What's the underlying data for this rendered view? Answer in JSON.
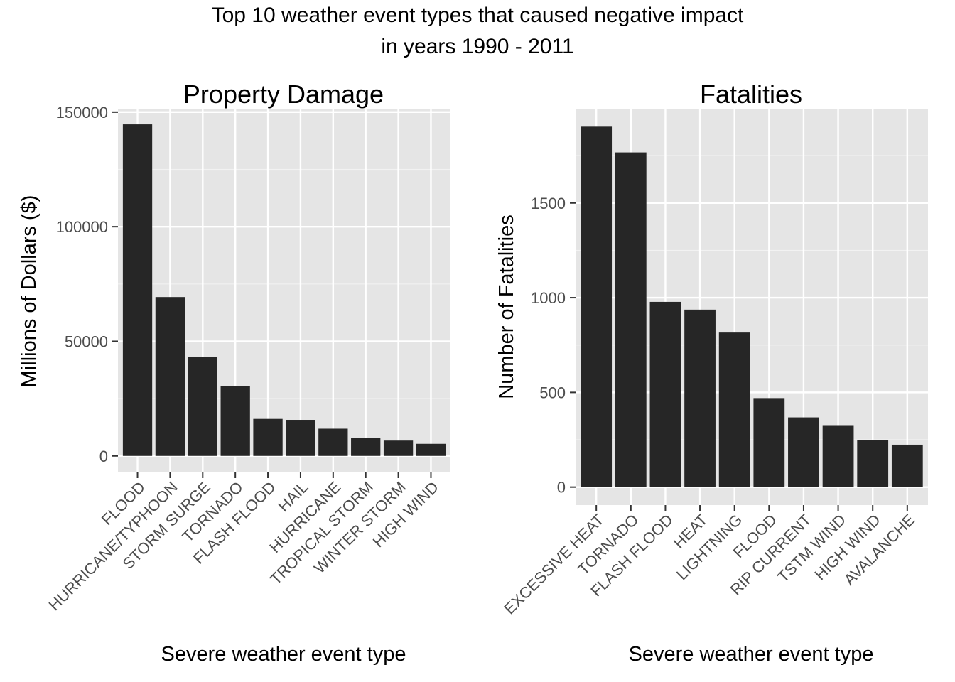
{
  "title_lines": [
    "Top 10 weather event types that caused negative impact",
    "in years 1990 - 2011"
  ],
  "colors": {
    "panel_bg": "#e5e5e5",
    "grid_major": "#ffffff",
    "grid_minor": "#f2f2f2",
    "bar": "#262626",
    "tick_text": "#4d4d4d",
    "tick_mark": "#333333"
  },
  "chart_data": [
    {
      "type": "bar",
      "title": "Property Damage",
      "xlabel": "Severe weather event type",
      "ylabel": "Millions of Dollars ($)",
      "categories": [
        "FLOOD",
        "HURRICANE/TYPHOON",
        "STORM SURGE",
        "TORNADO",
        "FLASH FLOOD",
        "HAIL",
        "HURRICANE",
        "TROPICAL STORM",
        "WINTER STORM",
        "HIGH WIND"
      ],
      "values": [
        144658,
        69306,
        43324,
        30316,
        16141,
        15733,
        11868,
        7704,
        6688,
        5270
      ],
      "yticks": [
        0,
        50000,
        100000,
        150000
      ],
      "ylim": [
        -7200,
        151500
      ],
      "grid": true
    },
    {
      "type": "bar",
      "title": "Fatalities",
      "xlabel": "Severe weather event type",
      "ylabel": "Number of Fatalities",
      "categories": [
        "EXCESSIVE HEAT",
        "TORNADO",
        "FLASH FLOOD",
        "HEAT",
        "LIGHTNING",
        "FLOOD",
        "RIP CURRENT",
        "TSTM WIND",
        "HIGH WIND",
        "AVALANCHE"
      ],
      "values": [
        1903,
        1767,
        978,
        937,
        816,
        470,
        368,
        327,
        248,
        224
      ],
      "yticks": [
        0,
        500,
        1000,
        1500
      ],
      "ylim": [
        -95,
        1998
      ],
      "grid": true
    }
  ]
}
